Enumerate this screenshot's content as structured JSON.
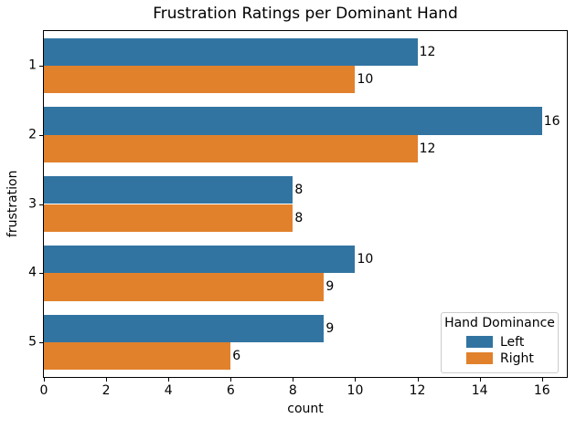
{
  "figure": {
    "background": "#ffffff",
    "spine_color": "#000000"
  },
  "chart_data": {
    "type": "bar",
    "orientation": "horizontal",
    "title": "Frustration Ratings per Dominant Hand",
    "xlabel": "count",
    "ylabel": "frustration",
    "categories": [
      "1",
      "2",
      "3",
      "4",
      "5"
    ],
    "series": [
      {
        "name": "Left",
        "color": "#3274a1",
        "values": [
          12,
          16,
          8,
          10,
          9
        ]
      },
      {
        "name": "Right",
        "color": "#e1812c",
        "values": [
          10,
          12,
          8,
          9,
          6
        ]
      }
    ],
    "xlim": [
      0,
      16.8
    ],
    "xticks": [
      0,
      2,
      4,
      6,
      8,
      10,
      12,
      14,
      16
    ],
    "bar_labels": true,
    "grid": false,
    "legend": {
      "title": "Hand Dominance",
      "position": "lower right",
      "entries": [
        "Left",
        "Right"
      ]
    }
  }
}
